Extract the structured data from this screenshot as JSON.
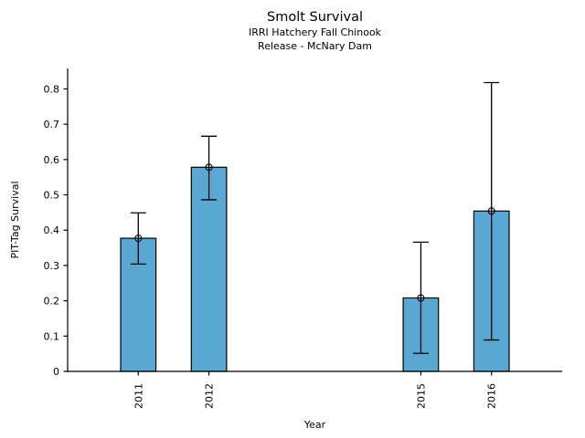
{
  "chart_data": {
    "type": "bar",
    "title": "Smolt Survival",
    "subtitle_lines": [
      "IRRI Hatchery Fall Chinook",
      "Release - McNary Dam"
    ],
    "xlabel": "Year",
    "ylabel": "PIT-Tag Survival",
    "categories": [
      "2011",
      "2012",
      "2015",
      "2016"
    ],
    "x_values": [
      2011,
      2012,
      2015,
      2016
    ],
    "values": [
      0.377,
      0.578,
      0.208,
      0.454
    ],
    "error_low": [
      0.304,
      0.486,
      0.051,
      0.089
    ],
    "error_high": [
      0.449,
      0.666,
      0.366,
      0.818
    ],
    "bar_width_years": 0.5,
    "xlim": [
      2010,
      2017
    ],
    "ylim": [
      0,
      0.858
    ],
    "yticks": [
      0,
      0.1,
      0.2,
      0.3,
      0.4,
      0.5,
      0.6,
      0.7,
      0.8
    ],
    "ytick_labels": [
      "0",
      "0.1",
      "0.2",
      "0.3",
      "0.4",
      "0.5",
      "0.6",
      "0.7",
      "0.8"
    ],
    "grid": false,
    "legend": false,
    "bar_color": "#58a8d3",
    "edge_color": "#000000",
    "error_color": "#000000",
    "marker": "open-circle",
    "x_tick_rotation": 90
  }
}
